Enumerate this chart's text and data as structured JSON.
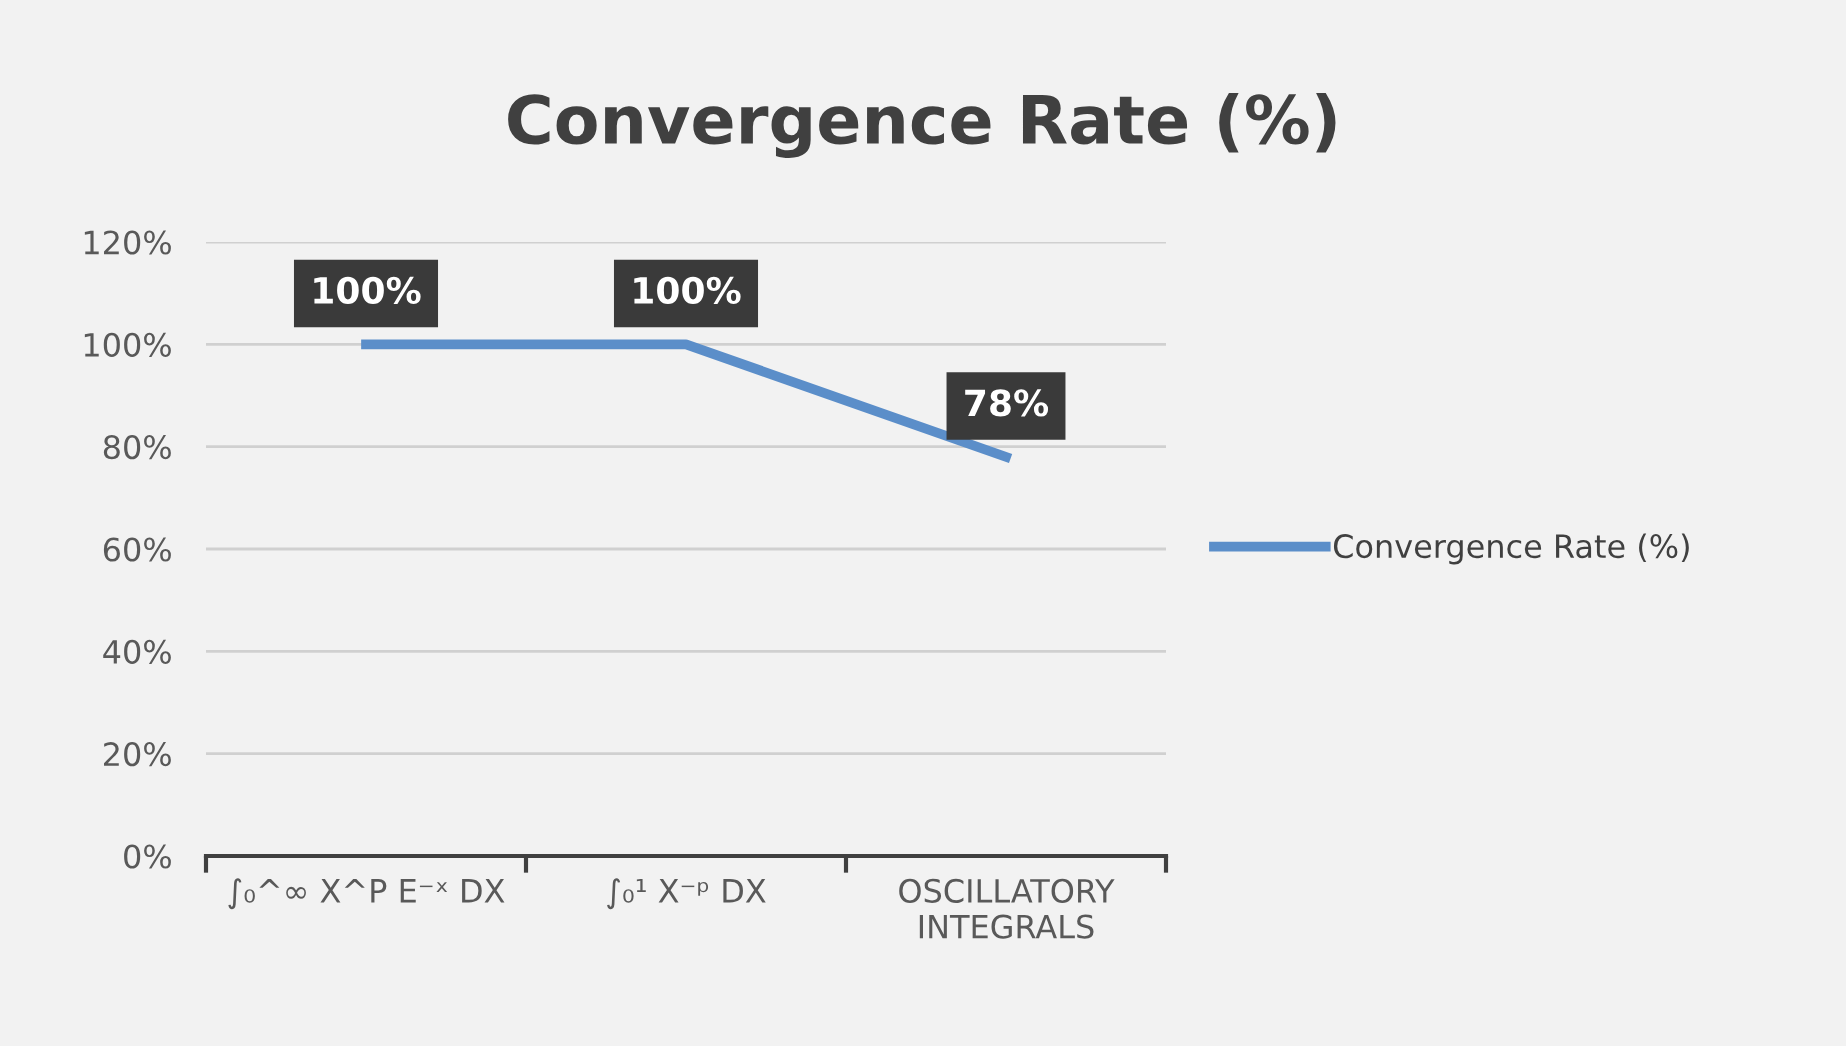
{
  "chart_data": {
    "type": "line",
    "title": "Convergence Rate (%)",
    "categories": [
      "∫₀^∞ X^P E⁻ˣ DX",
      "∫₀¹ X⁻ᵖ DX",
      "OSCILLATORY\nINTEGRALS"
    ],
    "series": [
      {
        "name": "Convergence Rate (%)",
        "color": "#5b8ec9",
        "values": [
          100,
          100,
          78
        ],
        "value_labels": [
          "100%",
          "100%",
          "78%"
        ]
      }
    ],
    "ylim": [
      0,
      120
    ],
    "yticks": [
      {
        "value": 0,
        "label": "0%"
      },
      {
        "value": 20,
        "label": "20%"
      },
      {
        "value": 40,
        "label": "40%"
      },
      {
        "value": 60,
        "label": "60%"
      },
      {
        "value": 80,
        "label": "80%"
      },
      {
        "value": 100,
        "label": "100%"
      },
      {
        "value": 120,
        "label": "120%"
      }
    ],
    "grid": "y",
    "legend": "right",
    "marker": "none",
    "line_style": "solid"
  }
}
